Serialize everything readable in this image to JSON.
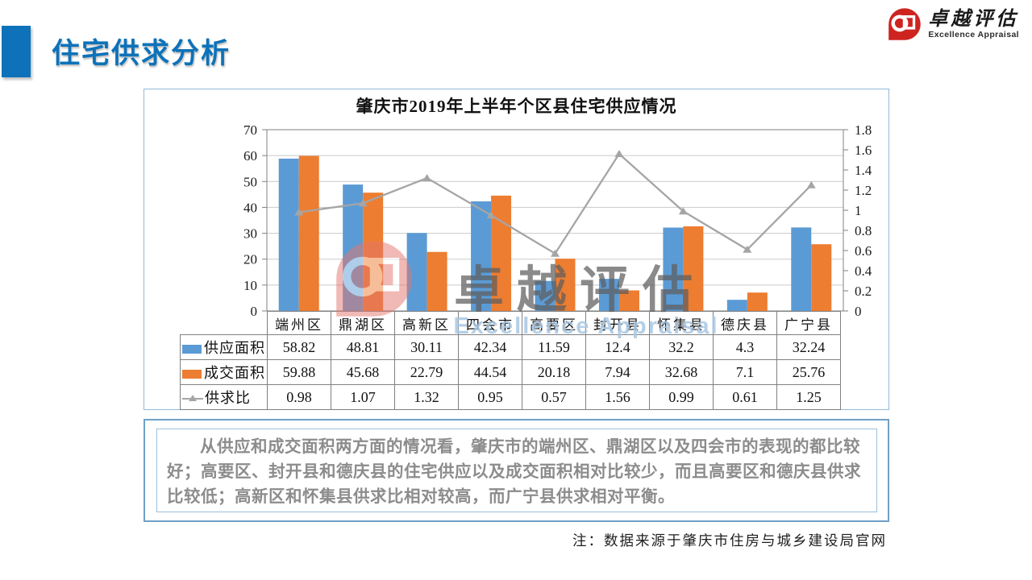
{
  "slide": {
    "title": "住宅供求分析",
    "note": "注：数据来源于肇庆市住房与城乡建设局官网"
  },
  "logo": {
    "name_cn": "卓越评估",
    "name_en": "Excellence Appraisal"
  },
  "watermark": {
    "text_cn": "卓越评估",
    "text_en": "Excellence Appraisal"
  },
  "analysis": {
    "text": "从供应和成交面积两方面的情况看，肇庆市的端州区、鼎湖区以及四会市的表现的都比较好；高要区、封开县和德庆县的住宅供应以及成交面积相对比较少，而且高要区和德庆县供求比较低；高新区和怀集县供求比相对较高，而广宁县供求相对平衡。"
  },
  "colors": {
    "title_blue": "#0d72b9",
    "brand_red": "#ce2420",
    "panel_border_blue": "#93b9d8",
    "supply_bar": "#5B9BD5",
    "deal_bar": "#ED7D31",
    "ratio_line": "#A5A5A5"
  },
  "chart_data": {
    "type": "bar",
    "subtype": "bar+line-dual-axis",
    "title": "肇庆市2019年上半年个区县住宅供应情况",
    "categories": [
      "端州区",
      "鼎湖区",
      "高新区",
      "四会市",
      "高要区",
      "封开县",
      "怀集县",
      "德庆县",
      "广宁县"
    ],
    "series": [
      {
        "name": "供应面积",
        "type": "bar",
        "axis": "left",
        "color": "#5B9BD5",
        "values": [
          58.82,
          48.81,
          30.11,
          42.34,
          11.59,
          12.4,
          32.2,
          4.3,
          32.24
        ]
      },
      {
        "name": "成交面积",
        "type": "bar",
        "axis": "left",
        "color": "#ED7D31",
        "values": [
          59.88,
          45.68,
          22.79,
          44.54,
          20.18,
          7.94,
          32.68,
          7.1,
          25.76
        ]
      },
      {
        "name": "供求比",
        "type": "line",
        "axis": "right",
        "color": "#A5A5A5",
        "values": [
          0.98,
          1.07,
          1.32,
          0.95,
          0.57,
          1.56,
          0.99,
          0.61,
          1.25
        ]
      }
    ],
    "left_axis": {
      "min": 0,
      "max": 70,
      "step": 10
    },
    "right_axis": {
      "min": 0,
      "max": 1.8,
      "step": 0.2
    },
    "grid": true,
    "legend_position": "data-table-left"
  }
}
